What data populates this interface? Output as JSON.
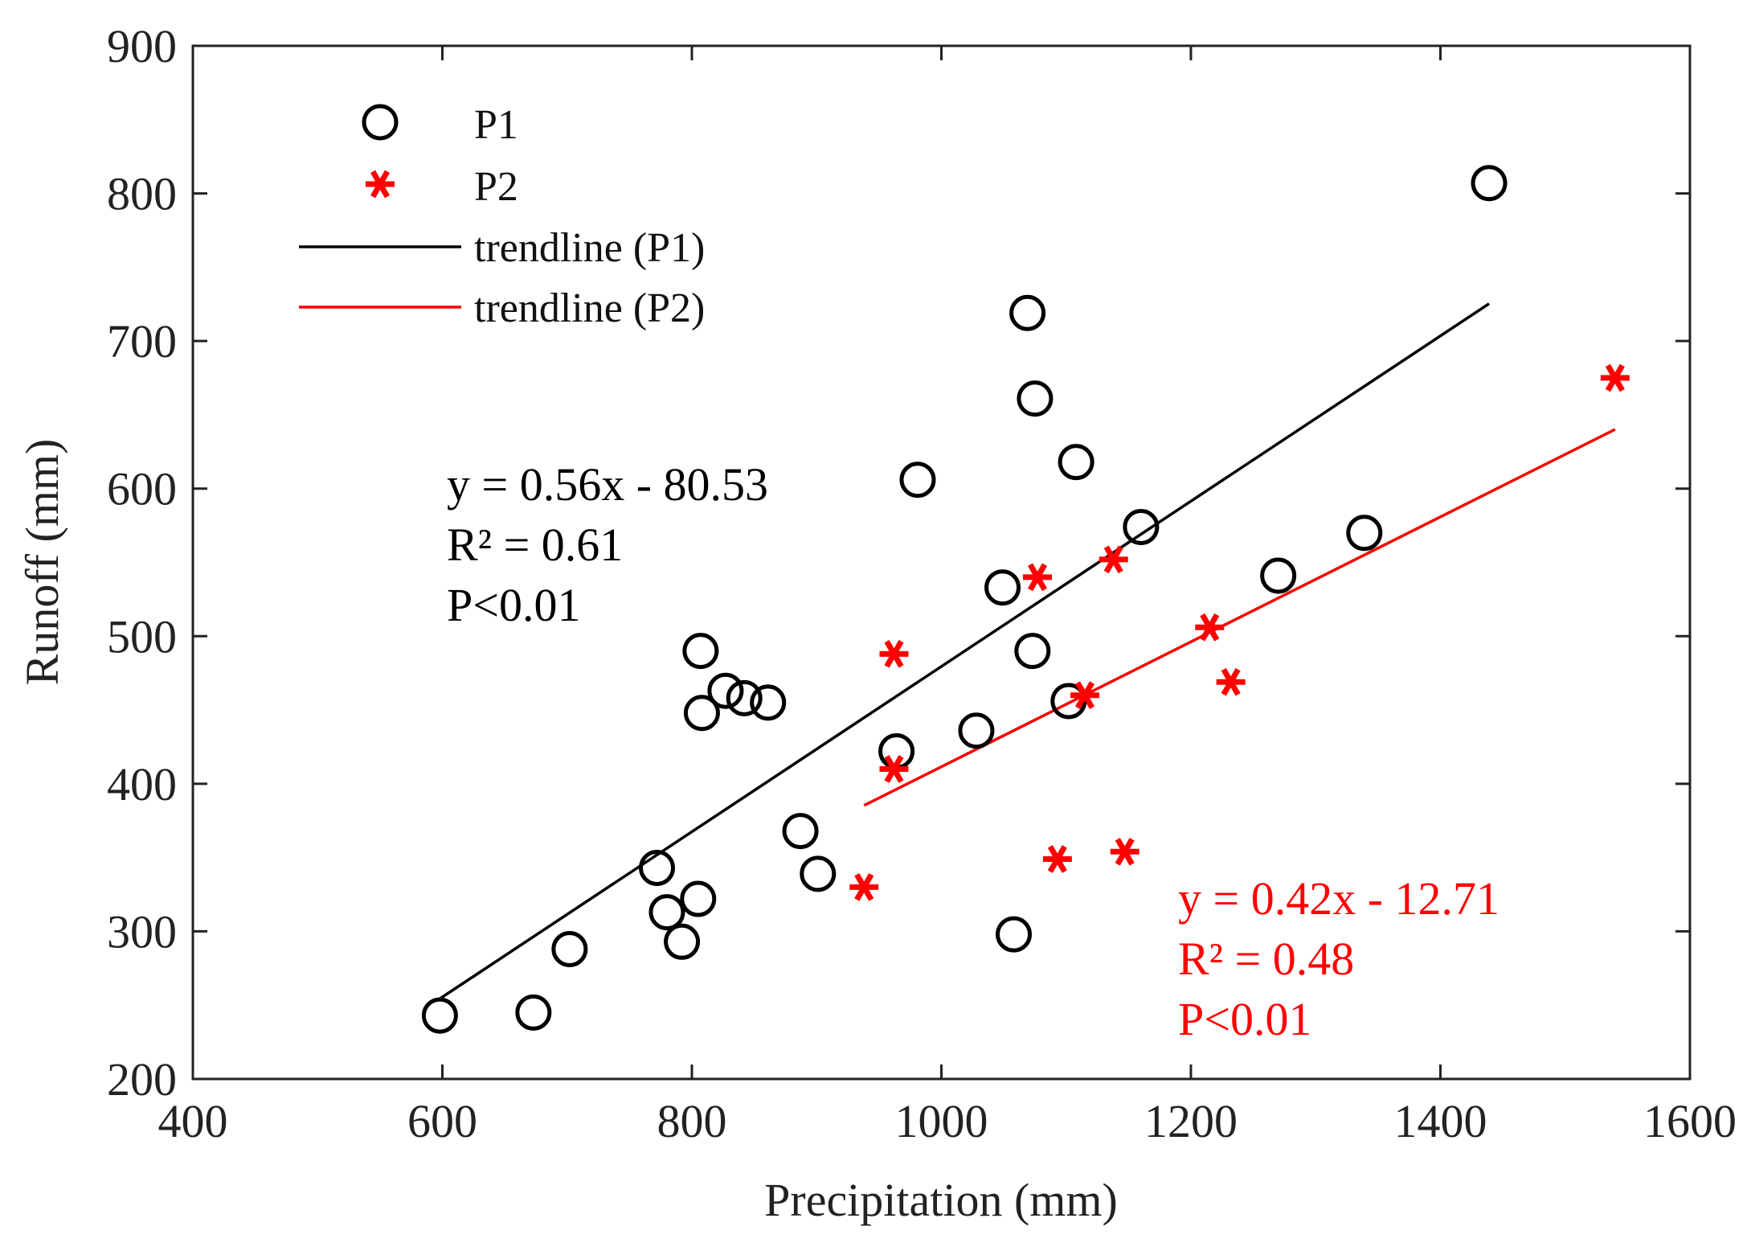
{
  "chart_data": {
    "type": "scatter",
    "title": "",
    "xlabel": "Precipitation (mm)",
    "ylabel": "Runoff (mm)",
    "xlim": [
      400,
      1600
    ],
    "ylim": [
      200,
      900
    ],
    "xticks": [
      "400",
      "600",
      "800",
      "1000",
      "1200",
      "1400",
      "1600"
    ],
    "yticks": [
      "200",
      "300",
      "400",
      "500",
      "600",
      "700",
      "800",
      "900"
    ],
    "grid": false,
    "legend_position": "top-left",
    "series": [
      {
        "name": "P1",
        "marker": "circle",
        "color": "#000000",
        "points": [
          [
            598,
            243
          ],
          [
            673,
            245
          ],
          [
            702,
            288
          ],
          [
            772,
            343
          ],
          [
            780,
            313
          ],
          [
            792,
            293
          ],
          [
            805,
            322
          ],
          [
            807,
            490
          ],
          [
            808,
            448
          ],
          [
            827,
            463
          ],
          [
            842,
            458
          ],
          [
            861,
            455
          ],
          [
            887,
            368
          ],
          [
            901,
            339
          ],
          [
            964,
            422
          ],
          [
            981,
            606
          ],
          [
            1028,
            436
          ],
          [
            1049,
            533
          ],
          [
            1058,
            298
          ],
          [
            1069,
            719
          ],
          [
            1073,
            490
          ],
          [
            1075,
            661
          ],
          [
            1102,
            456
          ],
          [
            1108,
            618
          ],
          [
            1160,
            574
          ],
          [
            1270,
            541
          ],
          [
            1339,
            570
          ],
          [
            1439,
            807
          ]
        ]
      },
      {
        "name": "P2",
        "marker": "asterisk",
        "color": "#ff0000",
        "points": [
          [
            938,
            330
          ],
          [
            962,
            410
          ],
          [
            962,
            488
          ],
          [
            1077,
            540
          ],
          [
            1093,
            349
          ],
          [
            1115,
            460
          ],
          [
            1138,
            552
          ],
          [
            1147,
            354
          ],
          [
            1215,
            506
          ],
          [
            1232,
            469
          ],
          [
            1540,
            675
          ]
        ]
      }
    ],
    "trendlines": [
      {
        "name": "trendline (P1)",
        "color": "#000000",
        "x": [
          598,
          1439
        ],
        "y": [
          254.4,
          725.3
        ]
      },
      {
        "name": "trendline (P2)",
        "color": "#ff0000",
        "x": [
          938,
          1540
        ],
        "y": [
          385.3,
          640.1
        ]
      }
    ],
    "annotations": [
      {
        "series": "P1",
        "color": "#000000",
        "lines": [
          "y = 0.56x - 80.53",
          "R² = 0.61",
          "P<0.01"
        ]
      },
      {
        "series": "P2",
        "color": "#ff0000",
        "lines": [
          "y = 0.42x - 12.71",
          "R² = 0.48",
          "P<0.01"
        ]
      }
    ]
  }
}
